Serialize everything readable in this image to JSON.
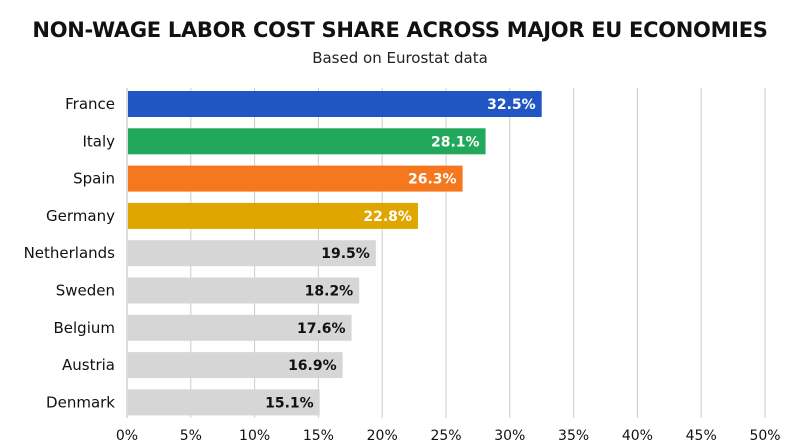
{
  "chart_data": {
    "type": "bar",
    "orientation": "horizontal",
    "title": "NON-WAGE LABOR COST SHARE ACROSS MAJOR EU ECONOMIES",
    "subtitle": "Based on Eurostat data",
    "categories": [
      "France",
      "Italy",
      "Spain",
      "Germany",
      "Netherlands",
      "Sweden",
      "Belgium",
      "Austria",
      "Denmark"
    ],
    "values": [
      32.5,
      28.1,
      26.3,
      22.8,
      19.5,
      18.2,
      17.6,
      16.9,
      15.1
    ],
    "value_labels": [
      "32.5%",
      "28.1%",
      "26.3%",
      "22.8%",
      "19.5%",
      "18.2%",
      "17.6%",
      "16.9%",
      "15.1%"
    ],
    "colors": [
      "#2255c4",
      "#22a85a",
      "#f5781e",
      "#dfa600",
      "#d6d6d6",
      "#d6d6d6",
      "#d6d6d6",
      "#d6d6d6",
      "#d6d6d6"
    ],
    "value_label_colors": [
      "#ffffff",
      "#ffffff",
      "#ffffff",
      "#ffffff",
      "#111111",
      "#111111",
      "#111111",
      "#111111",
      "#111111"
    ],
    "xlim": [
      0,
      50
    ],
    "xticks": [
      0,
      5,
      10,
      15,
      20,
      25,
      30,
      35,
      40,
      45,
      50
    ],
    "xtick_labels": [
      "0%",
      "5%",
      "10%",
      "15%",
      "20%",
      "25%",
      "30%",
      "35%",
      "40%",
      "45%",
      "50%"
    ],
    "grid": "vertical",
    "grid_color": "#cccccc",
    "legend": "none"
  }
}
